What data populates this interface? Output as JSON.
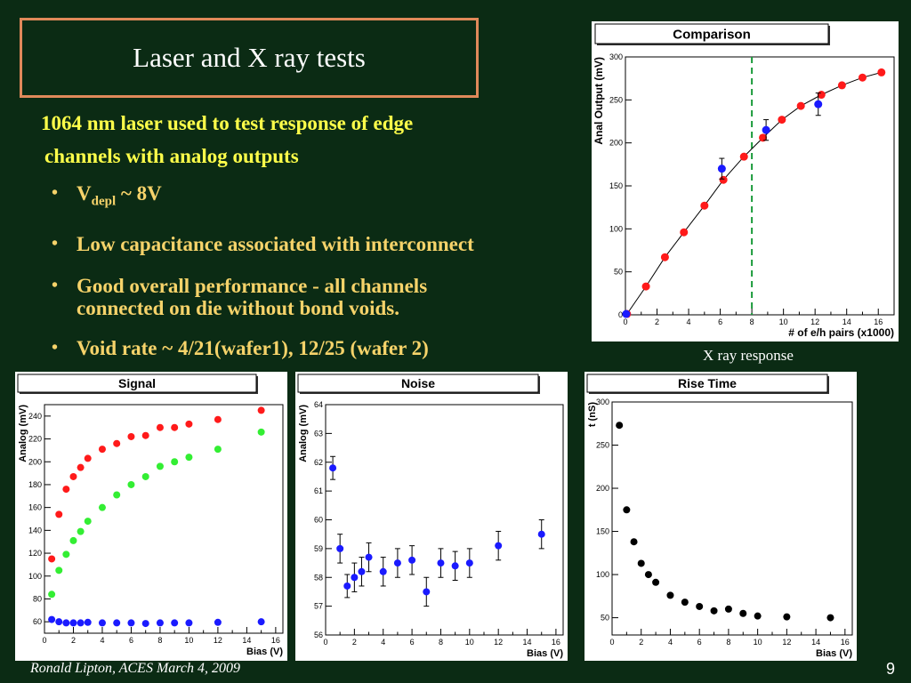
{
  "slide": {
    "title": "Laser and X ray tests",
    "intro_line1": "1064 nm laser used to test response of edge",
    "intro_line2": "channels with analog outputs",
    "bullet1_main": "V",
    "bullet1_sub": "depl",
    "bullet1_rest": " ~ 8V",
    "bullet2": "Low capacitance associated with interconnect",
    "bullet3_line1": "Good overall performance - all channels",
    "bullet3_line2": "connected on die without bond voids.",
    "bullet4": "Void rate ~ 4/21(wafer1), 12/25 (wafer 2)",
    "bullet_symbol": "•",
    "xray_caption": "X ray response",
    "footer": "Ronald Lipton, ACES March 4, 2009",
    "page_number": "9"
  },
  "colors": {
    "background": "#0b2b14",
    "title_border": "#e0895a",
    "intro_text": "#ffff4a",
    "bullet_text": "#f6d36a",
    "red": "#ff1a1a",
    "blue": "#1a1aff",
    "green": "#33ee33",
    "black": "#000000",
    "dashed_line": "#1a9a3a"
  },
  "chart_data": [
    {
      "id": "comparison",
      "type": "scatter",
      "title": "Comparison",
      "xlabel": "# of e/h pairs (x1000)",
      "ylabel": "Anal Output (mV)",
      "xlim": [
        0,
        17
      ],
      "ylim": [
        0,
        300
      ],
      "xticks": [
        0,
        2,
        4,
        6,
        8,
        10,
        12,
        14,
        16
      ],
      "yticks": [
        0,
        50,
        100,
        150,
        200,
        250,
        300
      ],
      "vline": 8,
      "grid": false,
      "series": [
        {
          "color": "red",
          "fit_line": true,
          "points": [
            [
              0.1,
              1
            ],
            [
              1.3,
              33
            ],
            [
              2.5,
              67
            ],
            [
              3.7,
              96
            ],
            [
              5.0,
              127
            ],
            [
              6.2,
              157
            ],
            [
              7.5,
              184
            ],
            [
              8.7,
              206
            ],
            [
              9.9,
              227
            ],
            [
              11.1,
              243
            ],
            [
              12.4,
              256
            ],
            [
              13.7,
              267
            ],
            [
              15.0,
              276
            ],
            [
              16.2,
              282
            ]
          ]
        },
        {
          "color": "blue",
          "points": [
            [
              0.05,
              1,
              0
            ],
            [
              6.1,
              170,
              12
            ],
            [
              8.9,
              215,
              12
            ],
            [
              12.2,
              245,
              13
            ]
          ]
        }
      ]
    },
    {
      "id": "signal",
      "type": "scatter",
      "title": "Signal",
      "xlabel": "Bias (V)",
      "ylabel": "Analog (mV)",
      "xlim": [
        0,
        16.5
      ],
      "ylim": [
        50,
        250
      ],
      "xticks": [
        0,
        2,
        4,
        6,
        8,
        10,
        12,
        14,
        16
      ],
      "yticks": [
        60,
        80,
        100,
        120,
        140,
        160,
        180,
        200,
        220,
        240
      ],
      "grid": false,
      "series": [
        {
          "color": "red",
          "points": [
            [
              0.5,
              115
            ],
            [
              1,
              154
            ],
            [
              1.5,
              176
            ],
            [
              2,
              187
            ],
            [
              2.5,
              195
            ],
            [
              3,
              203
            ],
            [
              4,
              211
            ],
            [
              5,
              216
            ],
            [
              6,
              222
            ],
            [
              7,
              223
            ],
            [
              8,
              230
            ],
            [
              9,
              230
            ],
            [
              10,
              233
            ],
            [
              12,
              237
            ],
            [
              15,
              245
            ]
          ]
        },
        {
          "color": "green",
          "points": [
            [
              0.5,
              84
            ],
            [
              1,
              105
            ],
            [
              1.5,
              119
            ],
            [
              2,
              131
            ],
            [
              2.5,
              139
            ],
            [
              3,
              148
            ],
            [
              4,
              160
            ],
            [
              5,
              171
            ],
            [
              6,
              180
            ],
            [
              7,
              187
            ],
            [
              8,
              196
            ],
            [
              9,
              200
            ],
            [
              10,
              204
            ],
            [
              12,
              211
            ],
            [
              15,
              226
            ]
          ]
        },
        {
          "color": "blue",
          "points": [
            [
              0.5,
              62
            ],
            [
              1,
              60
            ],
            [
              1.5,
              59
            ],
            [
              2,
              59
            ],
            [
              2.5,
              59
            ],
            [
              3,
              59.5
            ],
            [
              4,
              59
            ],
            [
              5,
              59
            ],
            [
              6,
              59
            ],
            [
              7,
              58.5
            ],
            [
              8,
              59
            ],
            [
              9,
              59
            ],
            [
              10,
              59
            ],
            [
              12,
              59.5
            ],
            [
              15,
              60
            ]
          ]
        }
      ]
    },
    {
      "id": "noise",
      "type": "scatter",
      "title": "Noise",
      "xlabel": "Bias (V)",
      "ylabel": "Analog (mV)",
      "xlim": [
        0,
        16.5
      ],
      "ylim": [
        56,
        64
      ],
      "xticks": [
        0,
        2,
        4,
        6,
        8,
        10,
        12,
        14,
        16
      ],
      "yticks": [
        56,
        57,
        58,
        59,
        60,
        61,
        62,
        63,
        64
      ],
      "grid": false,
      "series": [
        {
          "color": "blue",
          "points": [
            [
              0.5,
              61.8,
              0.4
            ],
            [
              1,
              59.0,
              0.5
            ],
            [
              1.5,
              57.7,
              0.4
            ],
            [
              2,
              58.0,
              0.5
            ],
            [
              2.5,
              58.2,
              0.5
            ],
            [
              3,
              58.7,
              0.5
            ],
            [
              4,
              58.2,
              0.5
            ],
            [
              5,
              58.5,
              0.5
            ],
            [
              6,
              58.6,
              0.5
            ],
            [
              7,
              57.5,
              0.5
            ],
            [
              8,
              58.5,
              0.5
            ],
            [
              9,
              58.4,
              0.5
            ],
            [
              10,
              58.5,
              0.5
            ],
            [
              12,
              59.1,
              0.5
            ],
            [
              15,
              59.5,
              0.5
            ]
          ]
        }
      ]
    },
    {
      "id": "risetime",
      "type": "scatter",
      "title": "Rise Time",
      "xlabel": "Bias (V)",
      "ylabel": "t (nS)",
      "xlim": [
        0,
        16.5
      ],
      "ylim": [
        30,
        300
      ],
      "xticks": [
        0,
        2,
        4,
        6,
        8,
        10,
        12,
        14,
        16
      ],
      "yticks": [
        50,
        100,
        150,
        200,
        250,
        300
      ],
      "grid": false,
      "series": [
        {
          "color": "black",
          "points": [
            [
              0.5,
              273
            ],
            [
              1,
              175
            ],
            [
              1.5,
              138
            ],
            [
              2,
              113
            ],
            [
              2.5,
              100
            ],
            [
              3,
              91
            ],
            [
              4,
              76
            ],
            [
              5,
              68
            ],
            [
              6,
              63
            ],
            [
              7,
              58
            ],
            [
              8,
              60
            ],
            [
              9,
              55
            ],
            [
              10,
              52
            ],
            [
              12,
              51
            ],
            [
              15,
              50
            ]
          ]
        }
      ]
    }
  ]
}
